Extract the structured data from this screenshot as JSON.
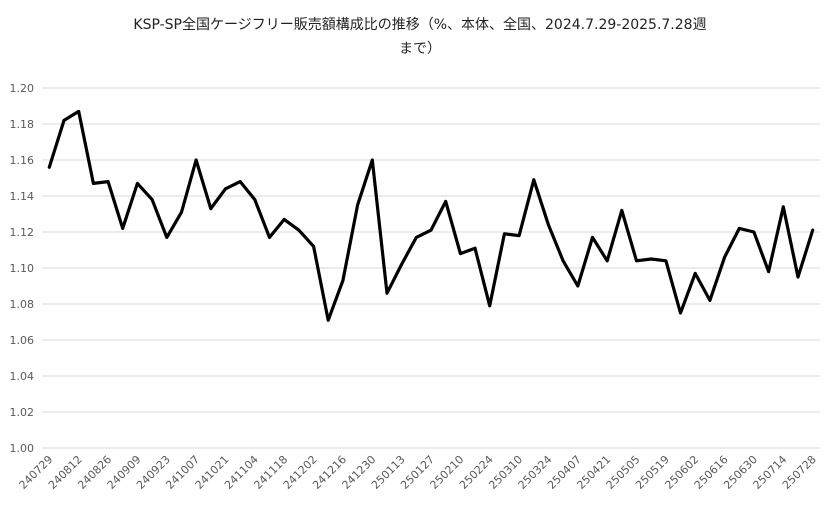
{
  "chart_data": {
    "type": "line",
    "title_line1": "KSP-SP全国ケージフリー販売額構成比の推移（%、本体、全国、2024.7.29-2025.7.28週",
    "title_line2": "まで）",
    "xlabel": "",
    "ylabel": "",
    "ylim": [
      1.0,
      1.2
    ],
    "yticks": [
      "1.00",
      "1.02",
      "1.04",
      "1.06",
      "1.08",
      "1.10",
      "1.12",
      "1.14",
      "1.16",
      "1.18",
      "1.20"
    ],
    "grid": true,
    "legend": "none",
    "x": [
      "240729",
      "240805",
      "240812",
      "240819",
      "240826",
      "240902",
      "240909",
      "240916",
      "240923",
      "240930",
      "241007",
      "241014",
      "241021",
      "241028",
      "241104",
      "241111",
      "241118",
      "241125",
      "241202",
      "241209",
      "241216",
      "241223",
      "241230",
      "250106",
      "250113",
      "250120",
      "250127",
      "250203",
      "250210",
      "250217",
      "250224",
      "250303",
      "250310",
      "250317",
      "250324",
      "250331",
      "250407",
      "250414",
      "250421",
      "250428",
      "250505",
      "250512",
      "250519",
      "250526",
      "250602",
      "250609",
      "250616",
      "250623",
      "250630",
      "250707",
      "250714",
      "250721",
      "250728"
    ],
    "x_tick_labels": [
      "240729",
      "240812",
      "240826",
      "240909",
      "240923",
      "241007",
      "241021",
      "241104",
      "241118",
      "241202",
      "241216",
      "241230",
      "250113",
      "250127",
      "250210",
      "250224",
      "250310",
      "250324",
      "250407",
      "250421",
      "250505",
      "250519",
      "250602",
      "250616",
      "250630",
      "250714",
      "250728"
    ],
    "values": [
      1.156,
      1.182,
      1.187,
      1.147,
      1.148,
      1.122,
      1.147,
      1.138,
      1.117,
      1.131,
      1.16,
      1.133,
      1.144,
      1.148,
      1.138,
      1.117,
      1.127,
      1.121,
      1.112,
      1.071,
      1.093,
      1.135,
      1.16,
      1.086,
      1.102,
      1.117,
      1.121,
      1.137,
      1.108,
      1.111,
      1.079,
      1.119,
      1.118,
      1.149,
      1.124,
      1.104,
      1.09,
      1.117,
      1.104,
      1.132,
      1.104,
      1.105,
      1.104,
      1.075,
      1.097,
      1.082,
      1.106,
      1.122,
      1.12,
      1.098,
      1.134,
      1.095,
      1.121
    ],
    "line_color": "#000000"
  }
}
